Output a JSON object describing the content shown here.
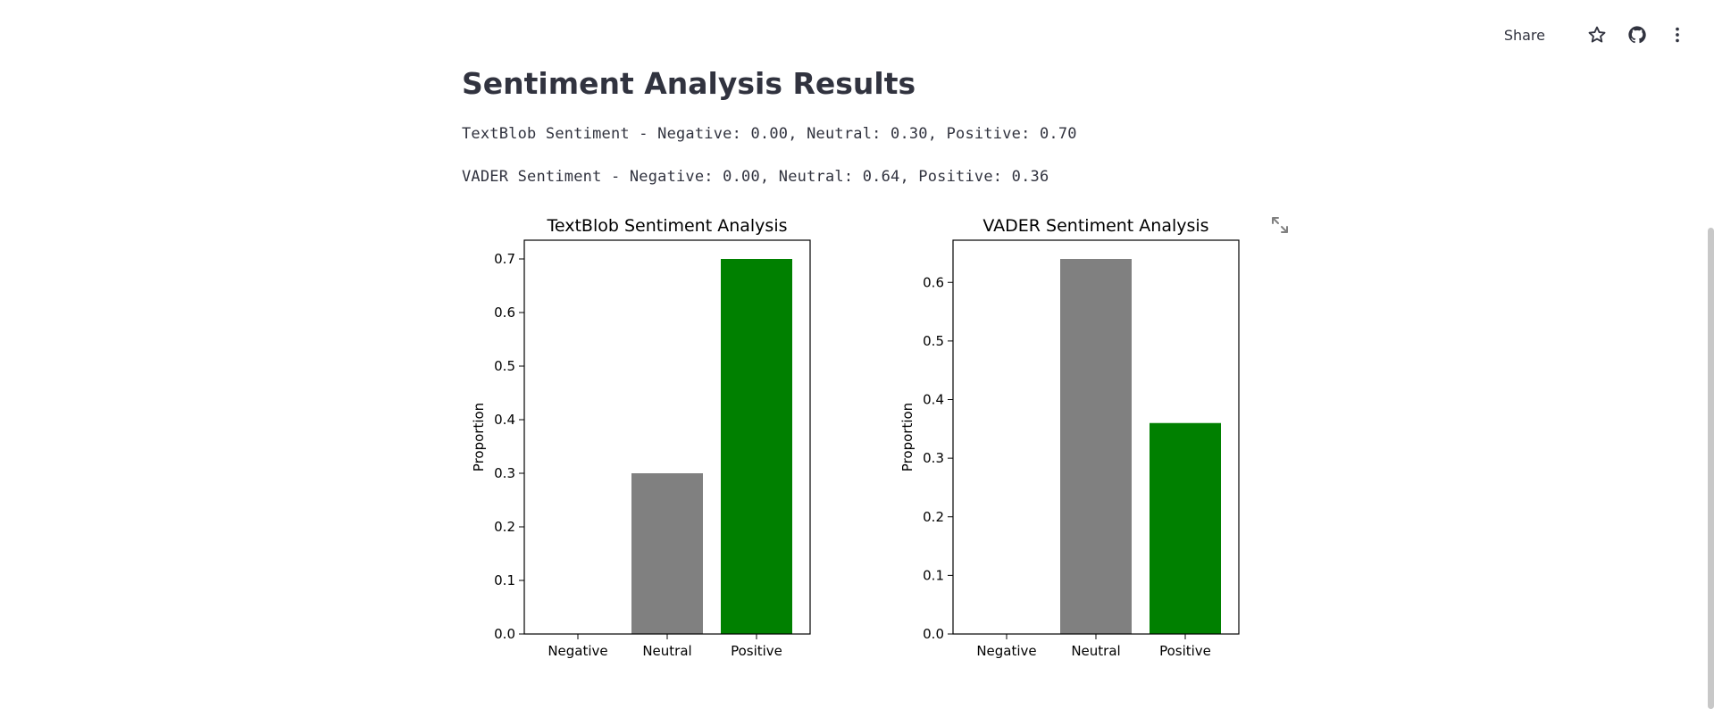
{
  "toolbar": {
    "share_label": "Share",
    "icons": [
      "star-icon",
      "github-icon",
      "more-vert-icon"
    ]
  },
  "page": {
    "title": "Sentiment Analysis Results",
    "textblob_line": "TextBlob Sentiment - Negative: 0.00, Neutral: 0.30, Positive: 0.70",
    "vader_line": "VADER Sentiment - Negative: 0.00, Neutral: 0.64, Positive: 0.36"
  },
  "chart_data": [
    {
      "type": "bar",
      "title": "TextBlob Sentiment Analysis",
      "xlabel": "",
      "ylabel": "Proportion",
      "categories": [
        "Negative",
        "Neutral",
        "Positive"
      ],
      "values": [
        0.0,
        0.3,
        0.7
      ],
      "colors": [
        "#ff0000",
        "#808080",
        "#008000"
      ],
      "ylim": [
        0,
        0.735
      ],
      "yticks": [
        0.0,
        0.1,
        0.2,
        0.3,
        0.4,
        0.5,
        0.6,
        0.7
      ],
      "ytick_labels": [
        "0.0",
        "0.1",
        "0.2",
        "0.3",
        "0.4",
        "0.5",
        "0.6",
        "0.7"
      ],
      "grid": false
    },
    {
      "type": "bar",
      "title": "VADER Sentiment Analysis",
      "xlabel": "",
      "ylabel": "Proportion",
      "categories": [
        "Negative",
        "Neutral",
        "Positive"
      ],
      "values": [
        0.0,
        0.64,
        0.36
      ],
      "colors": [
        "#ff0000",
        "#808080",
        "#008000"
      ],
      "ylim": [
        0,
        0.672
      ],
      "yticks": [
        0.0,
        0.1,
        0.2,
        0.3,
        0.4,
        0.5,
        0.6
      ],
      "ytick_labels": [
        "0.0",
        "0.1",
        "0.2",
        "0.3",
        "0.4",
        "0.5",
        "0.6"
      ],
      "grid": false
    }
  ]
}
